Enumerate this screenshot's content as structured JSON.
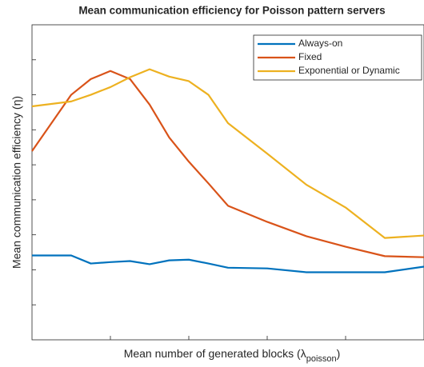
{
  "chart_data": {
    "type": "line",
    "title": "Mean communication efficiency for Poisson pattern servers",
    "y_label": "Mean communication efficiency (η)",
    "x_label": {
      "text": "Mean number of generated blocks (λ",
      "subscript": "poisson",
      "close": ")"
    },
    "x": [
      0,
      0.5,
      0.75,
      1,
      1.25,
      1.5,
      1.75,
      2,
      2.25,
      2.5,
      3,
      3.5,
      4,
      4.5,
      5
    ],
    "series": [
      {
        "name": "Always-on",
        "color": "#0072BD",
        "values": [
          2.41,
          2.41,
          2.18,
          2.22,
          2.25,
          2.16,
          2.27,
          2.29,
          2.18,
          2.06,
          2.04,
          1.93,
          1.93,
          1.93,
          2.09
        ]
      },
      {
        "name": "Fixed",
        "color": "#D95319",
        "values": [
          5.39,
          7.0,
          7.45,
          7.68,
          7.45,
          6.72,
          5.78,
          5.09,
          4.47,
          3.83,
          3.37,
          2.96,
          2.66,
          2.39,
          2.36
        ]
      },
      {
        "name": "Exponential or Dynamic",
        "color": "#EDB120",
        "values": [
          6.67,
          6.81,
          7.0,
          7.22,
          7.5,
          7.73,
          7.52,
          7.39,
          7.0,
          6.19,
          5.32,
          4.43,
          3.78,
          2.91,
          2.98
        ]
      }
    ],
    "xlim": [
      0,
      5
    ],
    "ylim": [
      0,
      9
    ],
    "xticks": [
      1,
      2,
      3,
      4
    ],
    "yticks": [
      1,
      2,
      3,
      4,
      5,
      6,
      7,
      8
    ],
    "legend": "top-right"
  }
}
